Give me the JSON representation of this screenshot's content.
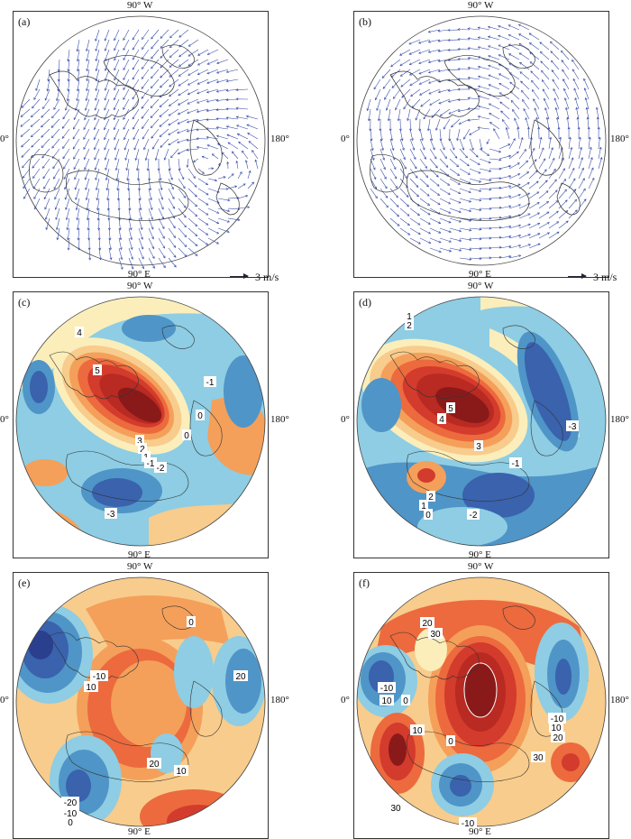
{
  "panels": {
    "a": {
      "label": "(a)"
    },
    "b": {
      "label": "(b)"
    },
    "c": {
      "label": "(c)",
      "contour_labels": [
        "4",
        "5",
        "3",
        "2",
        "1",
        "0",
        "0",
        "-1",
        "-2",
        "-1",
        "-3"
      ]
    },
    "d": {
      "label": "(d)",
      "contour_labels": [
        "1",
        "2",
        "5",
        "4",
        "3",
        "2",
        "1",
        "0",
        "-1",
        "-2",
        "-3"
      ]
    },
    "e": {
      "label": "(e)",
      "contour_labels": [
        "0",
        "-10",
        "10",
        "20",
        "20",
        "10",
        "-20",
        "-10",
        "0"
      ]
    },
    "f": {
      "label": "(f)",
      "contour_labels": [
        "20",
        "30",
        "-10",
        "10",
        "0",
        "0",
        "-10",
        "10",
        "20",
        "30",
        "30",
        "-10",
        "10"
      ]
    }
  },
  "longitude_labels": {
    "top": "90° W",
    "bottom": "90° E",
    "left": "0°",
    "right": "180°"
  },
  "vector_scale": {
    "label": "3 m/s"
  },
  "colors": {
    "deep_red": "#8a1a1a",
    "red": "#d33b2c",
    "orange_red": "#ec6a3e",
    "orange": "#f4a05a",
    "light_orange": "#f8cc8c",
    "cream": "#fbeebb",
    "light_blue": "#8ecde3",
    "blue": "#4f95c8",
    "mid_blue": "#3a62ad",
    "deep_blue": "#2b3f8f",
    "vector": "#3a4fa8",
    "coast": "#333333"
  }
}
